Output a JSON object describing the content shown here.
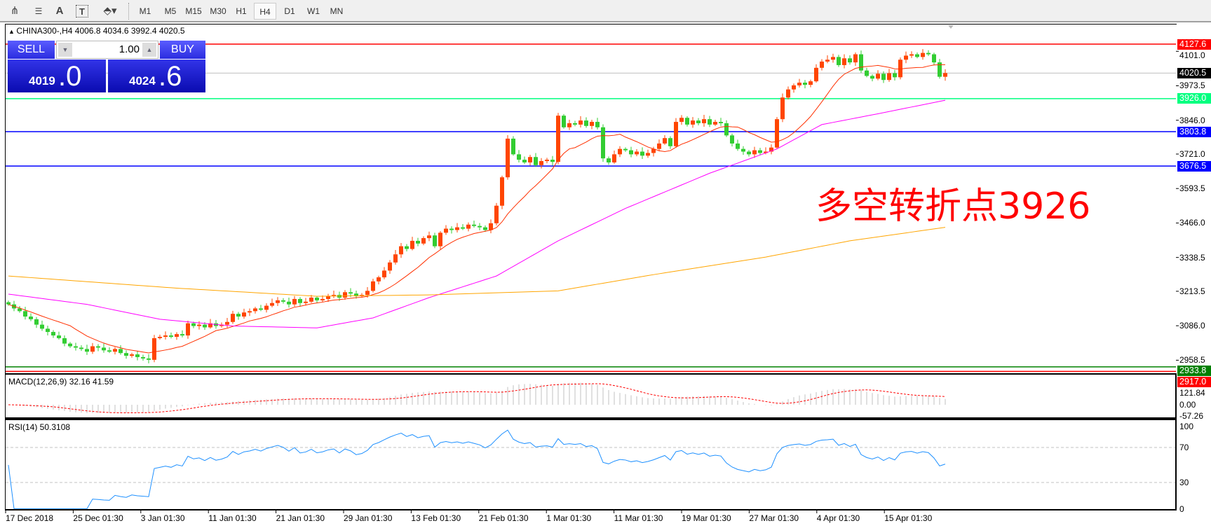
{
  "toolbar": {
    "icons": [
      "elliott-wave-icon",
      "fibonacci-icon",
      "text-icon",
      "text-label-icon",
      "arrows-icon"
    ],
    "text_icon": "A",
    "label_icon": "T",
    "timeframes": [
      "M1",
      "M5",
      "M15",
      "M30",
      "H1",
      "H4",
      "D1",
      "W1",
      "MN"
    ],
    "active_timeframe": "H4"
  },
  "chart": {
    "header": "CHINA300-,H4  4006.8 4034.6 3992.4 4020.5",
    "note": "多空转折点3926",
    "trade": {
      "sell": "SELL",
      "buy": "BUY",
      "lot": "1.00",
      "bid_main": "4019",
      "bid_frac": ".0",
      "ask_main": "4024",
      "ask_frac": ".6"
    },
    "price_ticks": [
      "4101.0",
      "3973.5",
      "3846.0",
      "3721.0",
      "3593.5",
      "3466.0",
      "3338.5",
      "3213.5",
      "3086.0",
      "2958.5"
    ],
    "price_tick_values": [
      4101.0,
      3973.5,
      3846.0,
      3721.0,
      3593.5,
      3466.0,
      3338.5,
      3213.5,
      3086.0,
      2958.5
    ],
    "hlines": [
      {
        "label": "4127.6",
        "value": 4127.6,
        "color": "#ff0000"
      },
      {
        "label": "4020.5",
        "value": 4020.5,
        "color": "#c0c0c0",
        "tag": "#000000"
      },
      {
        "label": "3926.0",
        "value": 3926.0,
        "color": "#00ff7f"
      },
      {
        "label": "3803.8",
        "value": 3803.8,
        "color": "#0000ff"
      },
      {
        "label": "3676.5",
        "value": 3676.5,
        "color": "#0000ff"
      },
      {
        "label": "2917.0",
        "value": 2917.0,
        "color": "#ff0000"
      },
      {
        "label": "2933.8",
        "value": 2933.8,
        "color": "#008000"
      }
    ],
    "x_labels": [
      "17 Dec 2018",
      "25 Dec 01:30",
      "3 Jan 01:30",
      "11 Jan 01:30",
      "21 Jan 01:30",
      "29 Jan 01:30",
      "13 Feb 01:30",
      "21 Feb 01:30",
      "1 Mar 01:30",
      "11 Mar 01:30",
      "19 Mar 01:30",
      "27 Mar 01:30",
      "4 Apr 01:30",
      "15 Apr 01:30"
    ],
    "colors": {
      "up": "#ff4500",
      "down": "#32cd32",
      "ma_fast": "#ff3000",
      "ma_mid": "#ff00ff",
      "ma_slow": "#ffa500",
      "rsi": "#1e90ff",
      "macd_hist": "#c0c0c0",
      "macd_signal": "#ff0000"
    }
  },
  "chart_data": {
    "type": "candlestick",
    "symbol": "CHINA300-",
    "timeframe": "H4",
    "last": {
      "open": 4006.8,
      "high": 4034.6,
      "low": 3992.4,
      "close": 4020.5
    },
    "close": [
      3165,
      3150,
      3140,
      3120,
      3110,
      3090,
      3075,
      3063,
      3050,
      3040,
      3020,
      3010,
      3005,
      3000,
      2990,
      3010,
      3005,
      2995,
      2990,
      3000,
      2985,
      2975,
      2980,
      2970,
      2965,
      2960,
      3040,
      3045,
      3050,
      3045,
      3055,
      3050,
      3095,
      3085,
      3090,
      3080,
      3095,
      3085,
      3090,
      3100,
      3130,
      3120,
      3135,
      3140,
      3150,
      3145,
      3160,
      3170,
      3180,
      3175,
      3165,
      3185,
      3170,
      3175,
      3190,
      3180,
      3185,
      3195,
      3200,
      3190,
      3210,
      3205,
      3195,
      3200,
      3215,
      3250,
      3265,
      3290,
      3320,
      3350,
      3380,
      3370,
      3400,
      3390,
      3410,
      3420,
      3380,
      3430,
      3445,
      3440,
      3450,
      3445,
      3460,
      3455,
      3450,
      3440,
      3465,
      3530,
      3635,
      3778,
      3720,
      3700,
      3690,
      3710,
      3680,
      3695,
      3700,
      3692,
      3863,
      3820,
      3835,
      3830,
      3845,
      3825,
      3840,
      3820,
      3705,
      3690,
      3720,
      3740,
      3735,
      3720,
      3730,
      3715,
      3725,
      3740,
      3760,
      3780,
      3750,
      3840,
      3855,
      3830,
      3845,
      3835,
      3850,
      3830,
      3840,
      3835,
      3790,
      3760,
      3740,
      3730,
      3720,
      3735,
      3725,
      3730,
      3745,
      3850,
      3930,
      3960,
      3975,
      3985,
      3977,
      3990,
      4040,
      4063,
      4070,
      4080,
      4050,
      4075,
      4060,
      4090,
      4030,
      4010,
      4000,
      4018,
      3995,
      4020,
      4005,
      4070,
      4085,
      4090,
      4080,
      4095,
      4090,
      4060,
      4006.8,
      4020.5
    ],
    "ma_mid": [
      [
        0,
        3203
      ],
      [
        14,
        3165
      ],
      [
        27,
        3110
      ],
      [
        40,
        3085
      ],
      [
        55,
        3078
      ],
      [
        65,
        3115
      ],
      [
        75,
        3190
      ],
      [
        87,
        3270
      ],
      [
        98,
        3400
      ],
      [
        110,
        3520
      ],
      [
        125,
        3650
      ],
      [
        137,
        3740
      ],
      [
        145,
        3830
      ],
      [
        155,
        3870
      ],
      [
        167,
        3920
      ]
    ],
    "ma_slow": [
      [
        0,
        3270
      ],
      [
        30,
        3225
      ],
      [
        55,
        3195
      ],
      [
        75,
        3200
      ],
      [
        98,
        3215
      ],
      [
        115,
        3275
      ],
      [
        135,
        3340
      ],
      [
        150,
        3400
      ],
      [
        167,
        3450
      ]
    ],
    "macd": {
      "label": "MACD(12,26,9) 32.16 41.59",
      "ticks": [
        "121.84",
        "0.00",
        "-57.26"
      ],
      "max": 121.84,
      "min": -57.26
    },
    "rsi": {
      "label": "RSI(14) 50.3108",
      "ticks": [
        "100",
        "70",
        "30",
        "0"
      ],
      "levels": [
        70,
        30
      ]
    }
  }
}
